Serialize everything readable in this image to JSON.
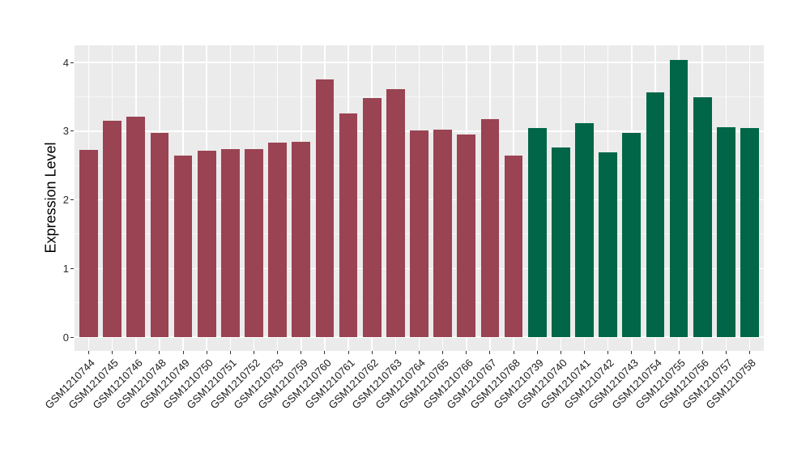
{
  "chart_data": {
    "type": "bar",
    "title": "",
    "ylabel": "Expression Level",
    "xlabel": "",
    "ylim": [
      -0.2,
      4.25
    ],
    "y_breaks": [
      0,
      1,
      2,
      3,
      4
    ],
    "y_minor_breaks": [
      0.5,
      1.5,
      2.5,
      3.5
    ],
    "grid": "on",
    "legend_position": "none",
    "panel_bg": "#EBEBEB",
    "grid_color": "#FFFFFF",
    "tick_color": "#333333",
    "group_colors": {
      "group1": "#9A4352",
      "group2": "#006647"
    },
    "bars": [
      {
        "label": "GSM1210744",
        "value": 2.73,
        "group": "group1"
      },
      {
        "label": "GSM1210745",
        "value": 3.15,
        "group": "group1"
      },
      {
        "label": "GSM1210746",
        "value": 3.21,
        "group": "group1"
      },
      {
        "label": "GSM1210748",
        "value": 2.98,
        "group": "group1"
      },
      {
        "label": "GSM1210749",
        "value": 2.64,
        "group": "group1"
      },
      {
        "label": "GSM1210750",
        "value": 2.71,
        "group": "group1"
      },
      {
        "label": "GSM1210751",
        "value": 2.74,
        "group": "group1"
      },
      {
        "label": "GSM1210752",
        "value": 2.74,
        "group": "group1"
      },
      {
        "label": "GSM1210753",
        "value": 2.83,
        "group": "group1"
      },
      {
        "label": "GSM1210759",
        "value": 2.85,
        "group": "group1"
      },
      {
        "label": "GSM1210760",
        "value": 3.76,
        "group": "group1"
      },
      {
        "label": "GSM1210761",
        "value": 3.26,
        "group": "group1"
      },
      {
        "label": "GSM1210762",
        "value": 3.48,
        "group": "group1"
      },
      {
        "label": "GSM1210763",
        "value": 3.61,
        "group": "group1"
      },
      {
        "label": "GSM1210764",
        "value": 3.01,
        "group": "group1"
      },
      {
        "label": "GSM1210765",
        "value": 3.02,
        "group": "group1"
      },
      {
        "label": "GSM1210766",
        "value": 2.95,
        "group": "group1"
      },
      {
        "label": "GSM1210767",
        "value": 3.17,
        "group": "group1"
      },
      {
        "label": "GSM1210768",
        "value": 2.65,
        "group": "group1"
      },
      {
        "label": "GSM1210739",
        "value": 3.05,
        "group": "group2"
      },
      {
        "label": "GSM1210740",
        "value": 2.76,
        "group": "group2"
      },
      {
        "label": "GSM1210741",
        "value": 3.12,
        "group": "group2"
      },
      {
        "label": "GSM1210742",
        "value": 2.69,
        "group": "group2"
      },
      {
        "label": "GSM1210743",
        "value": 2.98,
        "group": "group2"
      },
      {
        "label": "GSM1210754",
        "value": 3.56,
        "group": "group2"
      },
      {
        "label": "GSM1210755",
        "value": 4.04,
        "group": "group2"
      },
      {
        "label": "GSM1210756",
        "value": 3.5,
        "group": "group2"
      },
      {
        "label": "GSM1210757",
        "value": 3.06,
        "group": "group2"
      },
      {
        "label": "GSM1210758",
        "value": 3.05,
        "group": "group2"
      }
    ]
  }
}
